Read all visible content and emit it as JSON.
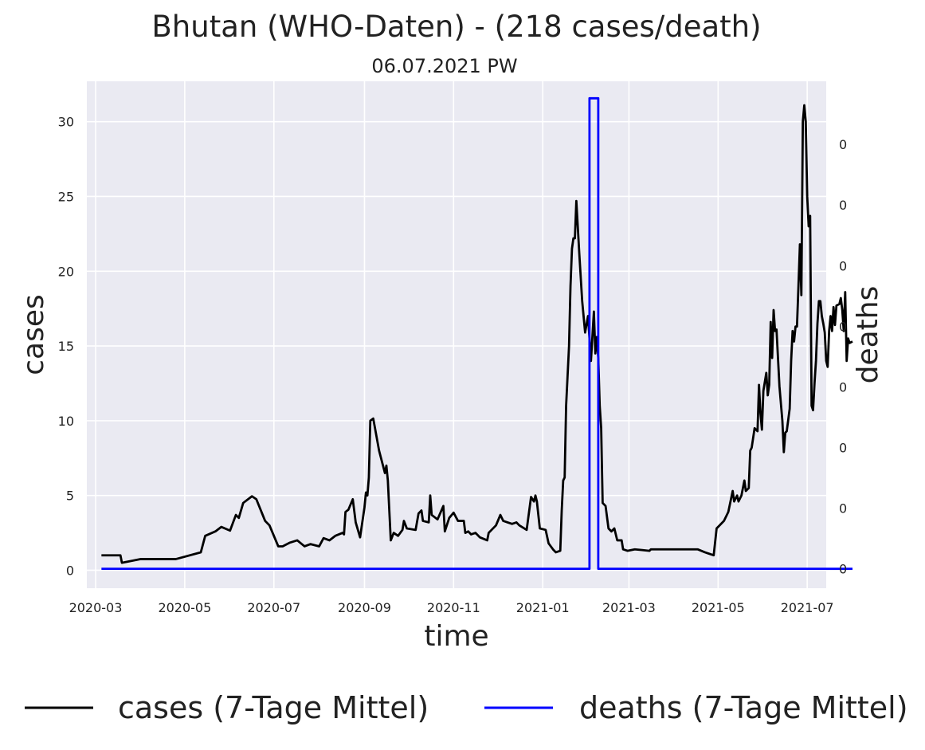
{
  "chart_data": {
    "type": "line",
    "title": "Bhutan (WHO-Daten) - (218 cases/death)",
    "subtitle": "06.07.2021 PW",
    "xlabel": "time",
    "ylabel": "cases",
    "y2label": "deaths",
    "xlim": [
      "2020-02-24",
      "2021-07-14"
    ],
    "ylim": [
      -1.2,
      32.7
    ],
    "y2lim": [
      -0.0016,
      0.0402
    ],
    "x_ticks": [
      "2020-03",
      "2020-05",
      "2020-07",
      "2020-09",
      "2020-11",
      "2021-01",
      "2021-03",
      "2021-05",
      "2021-07"
    ],
    "y_ticks": [
      0,
      5,
      10,
      15,
      20,
      25,
      30
    ],
    "y_tick_labels": [
      "0",
      "5",
      "10",
      "15",
      "20",
      "25",
      "30"
    ],
    "y2_ticks": [
      0,
      0.005,
      0.01,
      0.015,
      0.02,
      0.025,
      0.03,
      0.035
    ],
    "y2_tick_labels": [
      "0",
      "0",
      "0",
      "0",
      "0",
      "0",
      "0",
      "0"
    ],
    "grid": true,
    "legend_position": "bottom",
    "colors": {
      "cases": "#000000",
      "deaths": "#0000ff",
      "background": "#eaeaf2",
      "grid": "#ffffff",
      "y2label": "#0000ff"
    },
    "series": [
      {
        "name": "cases (7-Tage Mittel)",
        "color": "#000000",
        "axis": "left",
        "points": [
          [
            "2020-03-05",
            1.0
          ],
          [
            "2020-03-18",
            1.0
          ],
          [
            "2020-03-19",
            0.5
          ],
          [
            "2020-04-01",
            0.75
          ],
          [
            "2020-04-25",
            0.75
          ],
          [
            "2020-05-12",
            1.2
          ],
          [
            "2020-05-15",
            2.3
          ],
          [
            "2020-05-22",
            2.6
          ],
          [
            "2020-05-26",
            2.9
          ],
          [
            "2020-06-01",
            2.65
          ],
          [
            "2020-06-05",
            3.7
          ],
          [
            "2020-06-07",
            3.5
          ],
          [
            "2020-06-10",
            4.5
          ],
          [
            "2020-06-16",
            4.95
          ],
          [
            "2020-06-19",
            4.75
          ],
          [
            "2020-06-25",
            3.3
          ],
          [
            "2020-06-28",
            3.0
          ],
          [
            "2020-07-04",
            1.6
          ],
          [
            "2020-07-07",
            1.6
          ],
          [
            "2020-07-12",
            1.85
          ],
          [
            "2020-07-17",
            2.0
          ],
          [
            "2020-07-22",
            1.6
          ],
          [
            "2020-07-26",
            1.75
          ],
          [
            "2020-08-01",
            1.6
          ],
          [
            "2020-08-04",
            2.15
          ],
          [
            "2020-08-08",
            2.0
          ],
          [
            "2020-08-12",
            2.3
          ],
          [
            "2020-08-17",
            2.5
          ],
          [
            "2020-08-18",
            2.4
          ],
          [
            "2020-08-19",
            3.9
          ],
          [
            "2020-08-21",
            4.05
          ],
          [
            "2020-08-24",
            4.75
          ],
          [
            "2020-08-26",
            3.2
          ],
          [
            "2020-08-29",
            2.2
          ],
          [
            "2020-09-01",
            4.2
          ],
          [
            "2020-09-02",
            5.2
          ],
          [
            "2020-09-03",
            5.0
          ],
          [
            "2020-09-04",
            6.2
          ],
          [
            "2020-09-05",
            10.0
          ],
          [
            "2020-09-07",
            10.15
          ],
          [
            "2020-09-11",
            8.0
          ],
          [
            "2020-09-15",
            6.5
          ],
          [
            "2020-09-16",
            7.0
          ],
          [
            "2020-09-17",
            6.0
          ],
          [
            "2020-09-19",
            2.0
          ],
          [
            "2020-09-21",
            2.5
          ],
          [
            "2020-09-24",
            2.3
          ],
          [
            "2020-09-27",
            2.7
          ],
          [
            "2020-09-28",
            3.3
          ],
          [
            "2020-09-30",
            2.8
          ],
          [
            "2020-10-06",
            2.7
          ],
          [
            "2020-10-08",
            3.8
          ],
          [
            "2020-10-10",
            4.0
          ],
          [
            "2020-10-11",
            3.3
          ],
          [
            "2020-10-15",
            3.2
          ],
          [
            "2020-10-16",
            5.0
          ],
          [
            "2020-10-17",
            3.7
          ],
          [
            "2020-10-21",
            3.4
          ],
          [
            "2020-10-25",
            4.3
          ],
          [
            "2020-10-26",
            2.6
          ],
          [
            "2020-10-29",
            3.5
          ],
          [
            "2020-11-01",
            3.85
          ],
          [
            "2020-11-04",
            3.3
          ],
          [
            "2020-11-08",
            3.3
          ],
          [
            "2020-11-09",
            2.5
          ],
          [
            "2020-11-11",
            2.6
          ],
          [
            "2020-11-13",
            2.4
          ],
          [
            "2020-11-16",
            2.5
          ],
          [
            "2020-11-19",
            2.2
          ],
          [
            "2020-11-24",
            2.0
          ],
          [
            "2020-11-25",
            2.5
          ],
          [
            "2020-11-30",
            3.0
          ],
          [
            "2020-12-03",
            3.7
          ],
          [
            "2020-12-05",
            3.3
          ],
          [
            "2020-12-11",
            3.1
          ],
          [
            "2020-12-14",
            3.2
          ],
          [
            "2020-12-16",
            3.0
          ],
          [
            "2020-12-21",
            2.7
          ],
          [
            "2020-12-24",
            4.9
          ],
          [
            "2020-12-26",
            4.6
          ],
          [
            "2020-12-27",
            5.0
          ],
          [
            "2020-12-28",
            4.6
          ],
          [
            "2020-12-30",
            2.8
          ],
          [
            "2021-01-03",
            2.7
          ],
          [
            "2021-01-05",
            1.8
          ],
          [
            "2021-01-08",
            1.4
          ],
          [
            "2021-01-10",
            1.2
          ],
          [
            "2021-01-13",
            1.3
          ],
          [
            "2021-01-14",
            4.0
          ],
          [
            "2021-01-15",
            6.0
          ],
          [
            "2021-01-16",
            6.2
          ],
          [
            "2021-01-17",
            11.0
          ],
          [
            "2021-01-19",
            15.0
          ],
          [
            "2021-01-20",
            19.0
          ],
          [
            "2021-01-21",
            21.5
          ],
          [
            "2021-01-22",
            22.2
          ],
          [
            "2021-01-23",
            22.2
          ],
          [
            "2021-01-24",
            24.7
          ],
          [
            "2021-01-26",
            21.2
          ],
          [
            "2021-01-28",
            18.0
          ],
          [
            "2021-01-30",
            15.9
          ],
          [
            "2021-02-01",
            17.0
          ],
          [
            "2021-02-03",
            14.0
          ],
          [
            "2021-02-05",
            17.3
          ],
          [
            "2021-02-06",
            14.5
          ],
          [
            "2021-02-07",
            15.6
          ],
          [
            "2021-02-08",
            14.2
          ],
          [
            "2021-02-09",
            11.0
          ],
          [
            "2021-02-10",
            9.5
          ],
          [
            "2021-02-11",
            4.5
          ],
          [
            "2021-02-13",
            4.3
          ],
          [
            "2021-02-15",
            2.8
          ],
          [
            "2021-02-17",
            2.6
          ],
          [
            "2021-02-19",
            2.8
          ],
          [
            "2021-02-21",
            2.0
          ],
          [
            "2021-02-24",
            2.0
          ],
          [
            "2021-02-25",
            1.4
          ],
          [
            "2021-02-28",
            1.3
          ],
          [
            "2021-03-05",
            1.4
          ],
          [
            "2021-03-10",
            1.35
          ],
          [
            "2021-03-15",
            1.3
          ],
          [
            "2021-03-16",
            1.4
          ],
          [
            "2021-04-17",
            1.4
          ],
          [
            "2021-04-22",
            1.2
          ],
          [
            "2021-04-28",
            1.0
          ],
          [
            "2021-04-30",
            2.8
          ],
          [
            "2021-05-05",
            3.3
          ],
          [
            "2021-05-08",
            3.9
          ],
          [
            "2021-05-11",
            5.3
          ],
          [
            "2021-05-12",
            4.6
          ],
          [
            "2021-05-14",
            5.0
          ],
          [
            "2021-05-15",
            4.6
          ],
          [
            "2021-05-17",
            5.0
          ],
          [
            "2021-05-19",
            6.0
          ],
          [
            "2021-05-20",
            5.3
          ],
          [
            "2021-05-22",
            5.5
          ],
          [
            "2021-05-23",
            8.0
          ],
          [
            "2021-05-24",
            8.2
          ],
          [
            "2021-05-26",
            9.5
          ],
          [
            "2021-05-28",
            9.3
          ],
          [
            "2021-05-29",
            12.4
          ],
          [
            "2021-05-30",
            10.5
          ],
          [
            "2021-05-31",
            9.4
          ],
          [
            "2021-06-01",
            12.0
          ],
          [
            "2021-06-03",
            13.2
          ],
          [
            "2021-06-04",
            11.7
          ],
          [
            "2021-06-05",
            12.4
          ],
          [
            "2021-06-06",
            16.6
          ],
          [
            "2021-06-07",
            14.2
          ],
          [
            "2021-06-08",
            17.4
          ],
          [
            "2021-06-09",
            16.0
          ],
          [
            "2021-06-10",
            16.1
          ],
          [
            "2021-06-12",
            12.3
          ],
          [
            "2021-06-14",
            10.0
          ],
          [
            "2021-06-15",
            7.9
          ],
          [
            "2021-06-16",
            9.2
          ],
          [
            "2021-06-17",
            9.3
          ],
          [
            "2021-06-19",
            10.8
          ],
          [
            "2021-06-20",
            14.0
          ],
          [
            "2021-06-21",
            16.0
          ],
          [
            "2021-06-22",
            15.3
          ],
          [
            "2021-06-23",
            16.3
          ],
          [
            "2021-06-24",
            16.3
          ],
          [
            "2021-06-25",
            19.0
          ],
          [
            "2021-06-26",
            21.8
          ],
          [
            "2021-06-27",
            18.4
          ],
          [
            "2021-06-28",
            30.0
          ],
          [
            "2021-06-29",
            31.1
          ],
          [
            "2021-06-30",
            30.0
          ],
          [
            "2021-07-01",
            25.0
          ],
          [
            "2021-07-02",
            23.0
          ],
          [
            "2021-07-03",
            23.7
          ],
          [
            "2021-07-04",
            11.0
          ],
          [
            "2021-07-05",
            10.7
          ],
          [
            "2021-07-06",
            12.5
          ],
          [
            "2021-07-07",
            14.0
          ],
          [
            "2021-07-08",
            16.5
          ],
          [
            "2021-07-09",
            18.0
          ],
          [
            "2021-07-10",
            18.0
          ],
          [
            "2021-07-11",
            17.0
          ],
          [
            "2021-07-12",
            16.5
          ],
          [
            "2021-07-13",
            15.9
          ],
          [
            "2021-07-14",
            14.0
          ],
          [
            "2021-07-15",
            13.6
          ],
          [
            "2021-07-16",
            16.0
          ],
          [
            "2021-07-17",
            17.0
          ],
          [
            "2021-07-18",
            16.0
          ],
          [
            "2021-07-19",
            17.6
          ],
          [
            "2021-07-20",
            16.4
          ],
          [
            "2021-07-21",
            17.7
          ],
          [
            "2021-07-23",
            17.8
          ],
          [
            "2021-07-24",
            18.2
          ],
          [
            "2021-07-25",
            17.4
          ],
          [
            "2021-07-26",
            16.0
          ],
          [
            "2021-07-27",
            18.6
          ],
          [
            "2021-07-28",
            14.0
          ],
          [
            "2021-07-29",
            15.5
          ],
          [
            "2021-07-30",
            15.2
          ],
          [
            "2021-08-01",
            15.3
          ]
        ]
      },
      {
        "name": "deaths (7-Tage Mittel)",
        "color": "#0000ff",
        "axis": "right",
        "points": [
          [
            "2020-03-05",
            0
          ],
          [
            "2021-02-02",
            0
          ],
          [
            "2021-02-02",
            0.0388
          ],
          [
            "2021-02-08",
            0.0388
          ],
          [
            "2021-02-08",
            0
          ],
          [
            "2021-08-01",
            0
          ]
        ]
      }
    ]
  }
}
